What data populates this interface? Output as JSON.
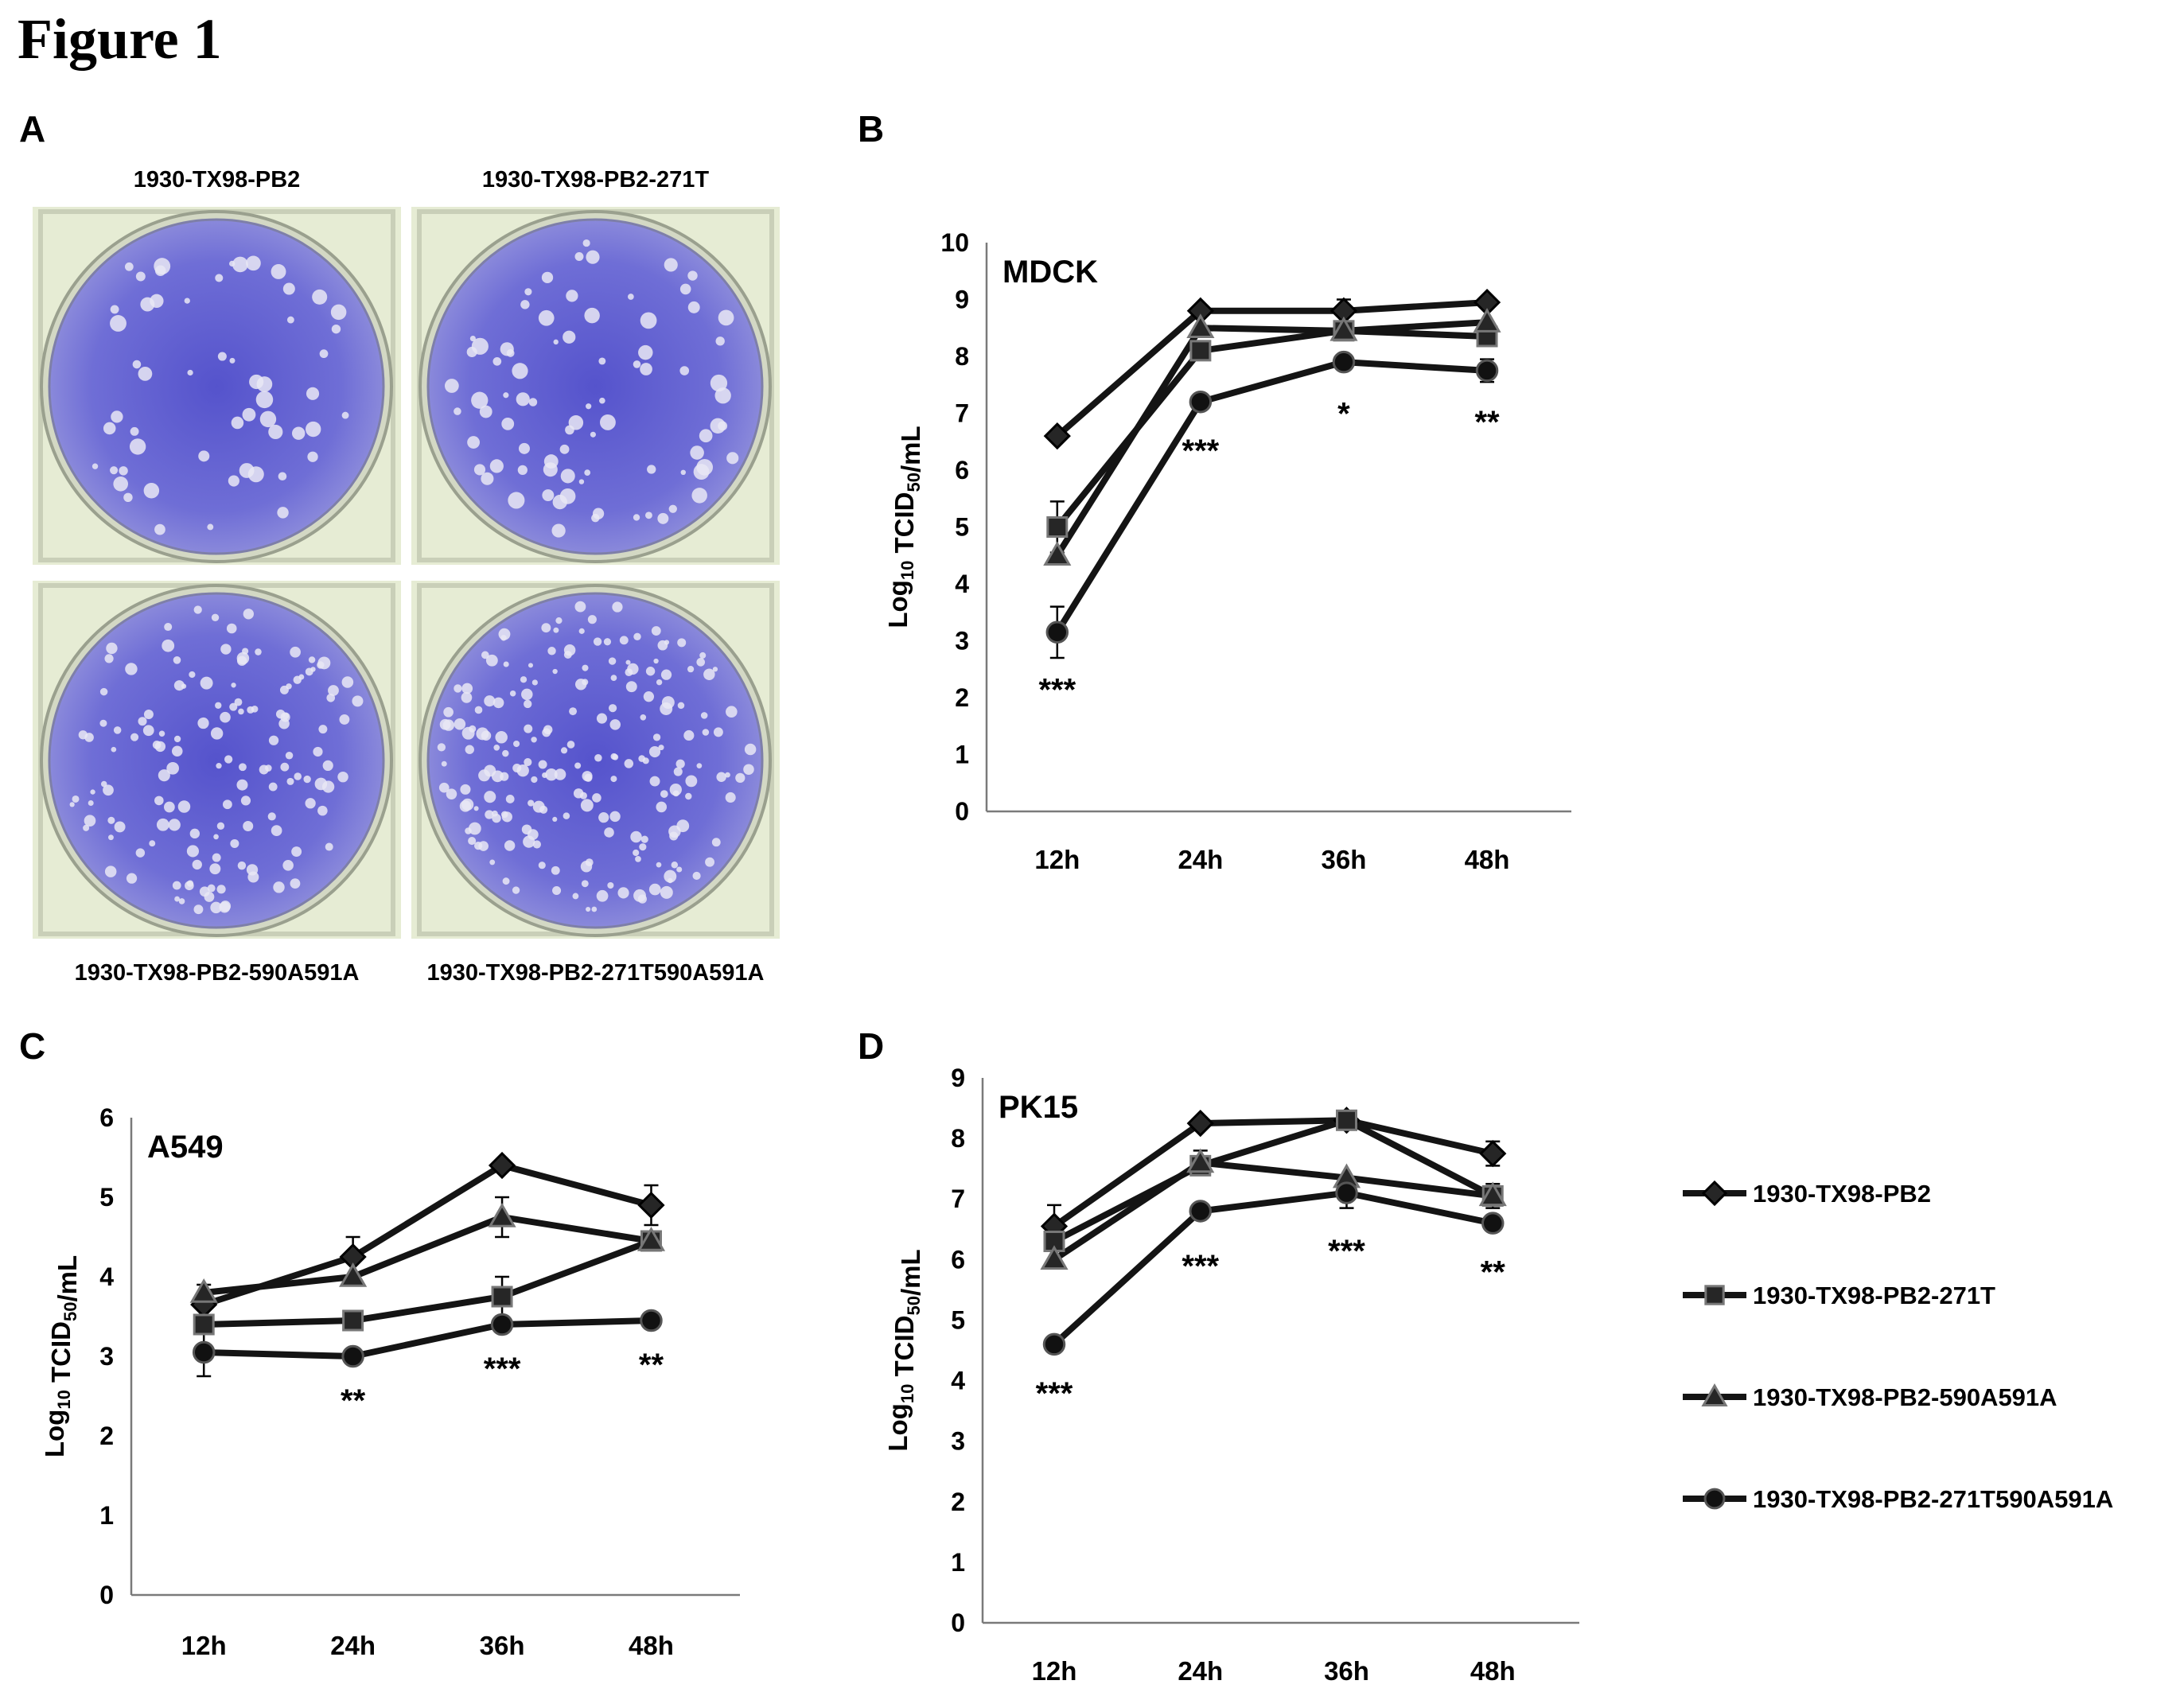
{
  "figure_title": "Figure 1",
  "panel_letters": {
    "a": "A",
    "b": "B",
    "c": "C",
    "d": "D"
  },
  "plates": [
    {
      "label": "1930-TX98-PB2"
    },
    {
      "label": "1930-TX98-PB2-271T"
    },
    {
      "label": "1930-TX98-PB2-590A591A"
    },
    {
      "label": "1930-TX98-PB2-271T590A591A"
    }
  ],
  "colors": {
    "stain": "#6f6ed6",
    "plate_bg": "#e6ecd4",
    "line": "#141414"
  },
  "legend": {
    "entries": [
      {
        "name": "1930-TX98-PB2",
        "marker": "diamond"
      },
      {
        "name": "1930-TX98-PB2-271T",
        "marker": "square"
      },
      {
        "name": "1930-TX98-PB2-590A591A",
        "marker": "triangle"
      },
      {
        "name": "1930-TX98-PB2-271T590A591A",
        "marker": "circle"
      }
    ]
  },
  "chart_data": [
    {
      "id": "B",
      "type": "line",
      "title": "MDCK",
      "ylabel_main": "Log",
      "ylabel_sub": "10",
      "ylabel_rest": " TCID",
      "ylabel_sub2": "50",
      "ylabel_end": "/mL",
      "categories": [
        "12h",
        "24h",
        "36h",
        "48h"
      ],
      "ylim": [
        0,
        10
      ],
      "yticks": [
        0,
        1,
        2,
        3,
        4,
        5,
        6,
        7,
        8,
        9,
        10
      ],
      "series": [
        {
          "name": "1930-TX98-PB2",
          "marker": "diamond",
          "values": [
            6.6,
            8.8,
            8.8,
            8.95
          ],
          "err": [
            0,
            0,
            0.2,
            0
          ]
        },
        {
          "name": "1930-TX98-PB2-271T",
          "marker": "square",
          "values": [
            5.0,
            8.1,
            8.45,
            8.35
          ],
          "err": [
            0.45,
            0,
            0.15,
            0
          ]
        },
        {
          "name": "1930-TX98-PB2-590A591A",
          "marker": "triangle",
          "values": [
            4.5,
            8.5,
            8.45,
            8.6
          ],
          "err": [
            0,
            0,
            0,
            0
          ]
        },
        {
          "name": "1930-TX98-PB2-271T590A591A",
          "marker": "circle",
          "values": [
            3.15,
            7.2,
            7.9,
            7.75
          ],
          "err": [
            0.45,
            0,
            0,
            0.2
          ]
        }
      ],
      "significance": [
        {
          "category": "12h",
          "label": "***",
          "y": 2.15
        },
        {
          "category": "24h",
          "label": "***",
          "y": 6.35
        },
        {
          "category": "36h",
          "label": "*",
          "y": 7.0
        },
        {
          "category": "48h",
          "label": "**",
          "y": 6.85
        }
      ]
    },
    {
      "id": "C",
      "type": "line",
      "title": "A549",
      "ylabel_main": "Log",
      "ylabel_sub": "10",
      "ylabel_rest": " TCID",
      "ylabel_sub2": "50",
      "ylabel_end": "/mL",
      "categories": [
        "12h",
        "24h",
        "36h",
        "48h"
      ],
      "ylim": [
        0,
        6
      ],
      "yticks": [
        0,
        1,
        2,
        3,
        4,
        5,
        6
      ],
      "series": [
        {
          "name": "1930-TX98-PB2",
          "marker": "diamond",
          "values": [
            3.65,
            4.25,
            5.4,
            4.9
          ],
          "err": [
            0,
            0.25,
            0,
            0.25
          ]
        },
        {
          "name": "1930-TX98-PB2-271T",
          "marker": "square",
          "values": [
            3.4,
            3.45,
            3.75,
            4.45
          ],
          "err": [
            0,
            0,
            0.25,
            0
          ]
        },
        {
          "name": "1930-TX98-PB2-590A591A",
          "marker": "triangle",
          "values": [
            3.8,
            4.0,
            4.75,
            4.45
          ],
          "err": [
            0.1,
            0,
            0.25,
            0
          ]
        },
        {
          "name": "1930-TX98-PB2-271T590A591A",
          "marker": "circle",
          "values": [
            3.05,
            3.0,
            3.4,
            3.45
          ],
          "err": [
            0.3,
            0,
            0,
            0.1
          ]
        }
      ],
      "significance": [
        {
          "category": "24h",
          "label": "**",
          "y": 2.45
        },
        {
          "category": "36h",
          "label": "***",
          "y": 2.85
        },
        {
          "category": "48h",
          "label": "**",
          "y": 2.9
        }
      ]
    },
    {
      "id": "D",
      "type": "line",
      "title": "PK15",
      "ylabel_main": "Log",
      "ylabel_sub": "10",
      "ylabel_rest": " TCID",
      "ylabel_sub2": "50",
      "ylabel_end": "/mL",
      "categories": [
        "12h",
        "24h",
        "36h",
        "48h"
      ],
      "ylim": [
        0,
        9
      ],
      "yticks": [
        0,
        1,
        2,
        3,
        4,
        5,
        6,
        7,
        8,
        9
      ],
      "series": [
        {
          "name": "1930-TX98-PB2",
          "marker": "diamond",
          "values": [
            6.55,
            8.25,
            8.3,
            7.75
          ],
          "err": [
            0.35,
            0,
            0.15,
            0.2
          ]
        },
        {
          "name": "1930-TX98-PB2-271T",
          "marker": "square",
          "values": [
            6.3,
            7.55,
            8.3,
            7.05
          ],
          "err": [
            0,
            0,
            0,
            0
          ]
        },
        {
          "name": "1930-TX98-PB2-590A591A",
          "marker": "triangle",
          "values": [
            6.0,
            7.6,
            7.35,
            7.05
          ],
          "err": [
            0,
            0.2,
            0,
            0.2
          ]
        },
        {
          "name": "1930-TX98-PB2-271T590A591A",
          "marker": "circle",
          "values": [
            4.6,
            6.8,
            7.1,
            6.6
          ],
          "err": [
            0.1,
            0.1,
            0.25,
            0
          ]
        }
      ],
      "significance": [
        {
          "category": "12h",
          "label": "***",
          "y": 3.8
        },
        {
          "category": "24h",
          "label": "***",
          "y": 5.9
        },
        {
          "category": "36h",
          "label": "***",
          "y": 6.15
        },
        {
          "category": "48h",
          "label": "**",
          "y": 5.8
        }
      ]
    }
  ]
}
